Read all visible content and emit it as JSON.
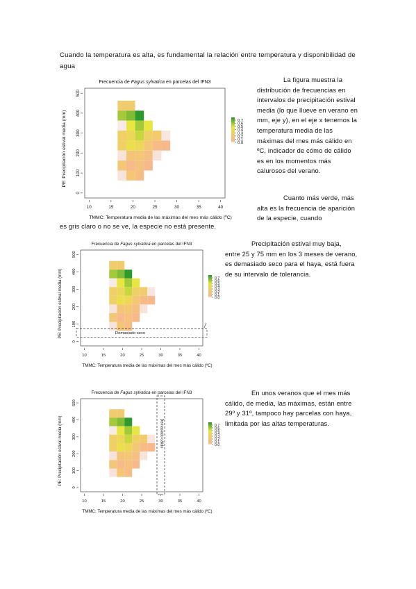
{
  "intro_text": "Cuando la temperatura es alta, es fundamental la relación entre temperatura y disponibilidad de agua",
  "paragraphs": {
    "p1": "La figura muestra la distribución de frecuencias en intervalos de precipitación estival media (lo que llueve en verano en mm, eje y), en el eje x tenemos la temperatura media de las máximas del mes más cálido en ºC, indicador de cómo de cálido es en los momentos más calurosos del verano.",
    "p2": "Cuanto más verde, más alta es la frecuencia de aparición de la especie, cuando",
    "p2_tail": "es gris claro o no se ve, la especie no está presente.",
    "p3": "Precipitación estival muy baja, entre 25 y 75 mm en los 3 meses de verano, es demasiado seco para el haya, está fuera de su intervalo de tolerancia.",
    "p4": "En unos veranos que el mes más cálido, de media, las máximas, están entre 29º y 31º, tampoco hay parcelas con haya, limitada por las altas temperaturas."
  },
  "annotations": {
    "dry_band_label": "Demasiado seco",
    "hot_band_label": "Demasiado cálido"
  },
  "chart_data": [
    {
      "type": "heatmap",
      "title": "Frecuencia de Fagus sylvatica en parcelas del IFN3",
      "title_parts": [
        "Frecuencia de ",
        "Fagus sylvatica",
        " en parcelas del  IFN3"
      ],
      "xlabel": "TMMC: Temperatura media de las máximas del mes más cálido (ºC)",
      "ylabel": "PE: Precipitación estival media (mm)",
      "x_ticks": [
        10,
        15,
        20,
        25,
        30,
        35,
        40
      ],
      "y_ticks": [
        0,
        100,
        200,
        300,
        400,
        500
      ],
      "xlim": [
        9,
        41
      ],
      "ylim": [
        -25,
        525
      ],
      "legend_ticks": [
        "0.7",
        "0.6",
        "0.5",
        "0.4",
        "0.3",
        "0.2",
        "0.1",
        "0.0"
      ],
      "cells": [
        {
          "x": 17.5,
          "y": 437.5,
          "v": 0.25
        },
        {
          "x": 17.5,
          "y": 387.5,
          "v": 0.55
        },
        {
          "x": 17.5,
          "y": 337.5,
          "v": 0.01
        },
        {
          "x": 17.5,
          "y": 287.5,
          "v": 0.3
        },
        {
          "x": 17.5,
          "y": 237.5,
          "v": 0.3
        },
        {
          "x": 17.5,
          "y": 187.5,
          "v": 0.03
        },
        {
          "x": 17.5,
          "y": 137.5,
          "v": 0.2
        },
        {
          "x": 17.5,
          "y": 87.5,
          "v": 0.03
        },
        {
          "x": 19.5,
          "y": 437.5,
          "v": 0.25
        },
        {
          "x": 19.5,
          "y": 387.5,
          "v": 0.6
        },
        {
          "x": 19.5,
          "y": 337.5,
          "v": 0.45
        },
        {
          "x": 19.5,
          "y": 287.5,
          "v": 0.35
        },
        {
          "x": 19.5,
          "y": 237.5,
          "v": 0.4
        },
        {
          "x": 19.5,
          "y": 187.5,
          "v": 0.18
        },
        {
          "x": 19.5,
          "y": 137.5,
          "v": 0.06
        },
        {
          "x": 19.5,
          "y": 87.5,
          "v": 0.2
        },
        {
          "x": 21.5,
          "y": 387.5,
          "v": 0.72
        },
        {
          "x": 21.5,
          "y": 337.5,
          "v": 0.55
        },
        {
          "x": 21.5,
          "y": 287.5,
          "v": 0.5
        },
        {
          "x": 21.5,
          "y": 237.5,
          "v": 0.35
        },
        {
          "x": 21.5,
          "y": 187.5,
          "v": 0.2
        },
        {
          "x": 21.5,
          "y": 137.5,
          "v": 0.15
        },
        {
          "x": 21.5,
          "y": 87.5,
          "v": 0.1
        },
        {
          "x": 23.5,
          "y": 337.5,
          "v": 0.45
        },
        {
          "x": 23.5,
          "y": 287.5,
          "v": 0.3
        },
        {
          "x": 23.5,
          "y": 237.5,
          "v": 0.2
        },
        {
          "x": 23.5,
          "y": 187.5,
          "v": 0.12
        },
        {
          "x": 23.5,
          "y": 137.5,
          "v": 0.05
        },
        {
          "x": 25.5,
          "y": 287.5,
          "v": 0.25
        },
        {
          "x": 25.5,
          "y": 237.5,
          "v": 0.08
        },
        {
          "x": 25.5,
          "y": 187.5,
          "v": 0.03
        },
        {
          "x": 27.5,
          "y": 287.5,
          "v": 0.02
        },
        {
          "x": 27.5,
          "y": 237.5,
          "v": 0.05
        }
      ],
      "colors": {
        "high": "#2e9a2e",
        "mid": "#e8e640",
        "low": "#f7b98c",
        "zero": "#f7eeee"
      }
    }
  ]
}
